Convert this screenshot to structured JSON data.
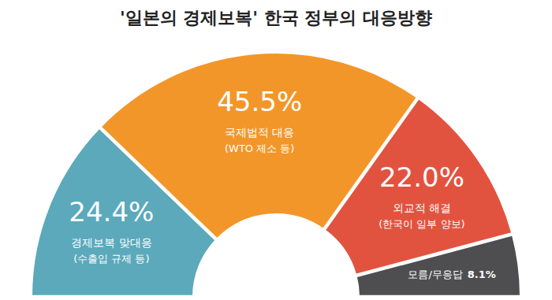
{
  "chart_data": {
    "type": "pie",
    "title": "'일본의 경제보복' 한국 정부의 대응방향",
    "categories": [
      "경제보복 맞대응",
      "국제법적 대응",
      "외교적 해결",
      "모름/무응답"
    ],
    "sublabels": [
      "(수출입 규제 등)",
      "(WTO 제소 등)",
      "(한국이 일부 양보)",
      null
    ],
    "values": [
      24.4,
      45.5,
      22.0,
      8.1
    ],
    "value_labels": [
      "24.4%",
      "45.5%",
      "22.0%",
      "8.1%"
    ],
    "colors": [
      "#5ba9bb",
      "#f3962a",
      "#e2533f",
      "#4e4e50"
    ],
    "data_labels": true
  }
}
